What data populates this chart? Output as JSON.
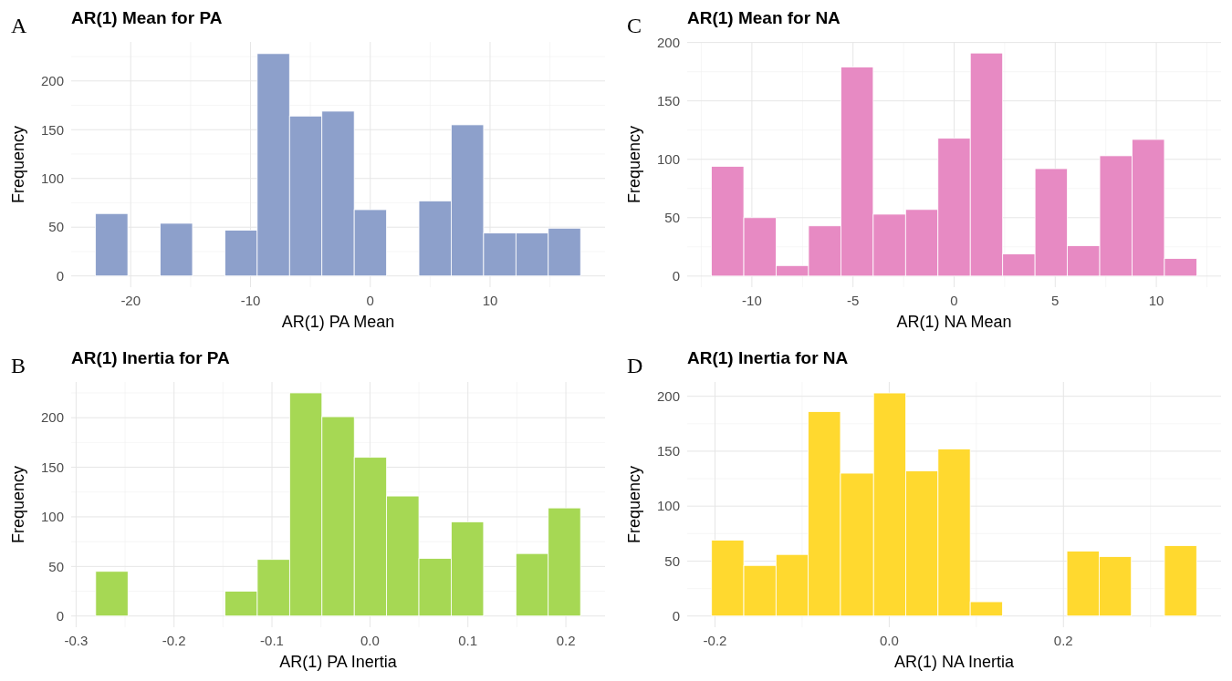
{
  "chart_data": [
    {
      "type": "histogram",
      "title": "AR(1) Mean for PA",
      "xlabel": "AR(1) PA Mean",
      "ylabel": "Frequency",
      "annotations": [
        "A"
      ],
      "color": "#8da0cb",
      "bins": [
        -22.94,
        -20.24,
        -17.54,
        -14.84,
        -12.14,
        -9.44,
        -6.74,
        -4.04,
        -1.34,
        1.36,
        4.06,
        6.76,
        9.46,
        12.16,
        14.86,
        17.56
      ],
      "values": [
        64,
        0,
        54,
        0,
        47,
        228,
        164,
        169,
        68,
        0,
        77,
        155,
        44,
        44,
        49
      ],
      "xlim": [
        -24.97,
        19.6
      ],
      "xticks": [
        -20,
        -10,
        0,
        10
      ],
      "ylim": [
        -11.5,
        240
      ],
      "yticks": [
        0,
        50,
        100,
        150,
        200
      ],
      "grid": true
    },
    {
      "type": "histogram",
      "title": "AR(1) Mean for NA",
      "xlabel": "AR(1) NA Mean",
      "ylabel": "Frequency",
      "annotations": [
        "C"
      ],
      "color": "#e78ac3",
      "bins": [
        -12,
        -10.4,
        -8.8,
        -7.2,
        -5.6,
        -4,
        -2.4,
        -0.8,
        0.8,
        2.4,
        4,
        5.6,
        7.2,
        8.8,
        10.4,
        12
      ],
      "values": [
        94,
        50,
        9,
        43,
        179,
        53,
        57,
        118,
        191,
        19,
        92,
        26,
        103,
        117,
        15
      ],
      "xlim": [
        -13.2,
        13.2
      ],
      "xticks": [
        -10,
        -5,
        0,
        5,
        10
      ],
      "ylim": [
        -9.5,
        200.5
      ],
      "yticks": [
        0,
        50,
        100,
        150,
        200
      ],
      "grid": true
    },
    {
      "type": "histogram",
      "title": "AR(1) Inertia for PA",
      "xlabel": "AR(1) PA Inertia",
      "ylabel": "Frequency",
      "annotations": [
        "B"
      ],
      "color": "#a6d854",
      "bins": [
        -0.28,
        -0.247,
        -0.148,
        -0.115,
        -0.082,
        -0.049,
        -0.016,
        0.017,
        0.05,
        0.083,
        0.116,
        0.149,
        0.182,
        0.215
      ],
      "values": [
        45,
        0,
        25,
        57,
        225,
        201,
        160,
        121,
        58,
        95,
        0,
        63,
        109
      ],
      "xlim": [
        -0.305,
        0.24
      ],
      "xticks": [
        -0.3,
        -0.2,
        -0.1,
        {
          "value": 0,
          "label": "0.0"
        },
        0.1,
        0.2
      ],
      "ylim": [
        -11.3,
        236
      ],
      "yticks": [
        0,
        50,
        100,
        150,
        200
      ],
      "grid": true
    },
    {
      "type": "histogram",
      "title": "AR(1) Inertia for NA",
      "xlabel": "AR(1) NA Inertia",
      "ylabel": "Frequency",
      "annotations": [
        "D"
      ],
      "color": "#ffd92f",
      "bins": [
        -0.204,
        -0.167,
        -0.13,
        -0.093,
        -0.056,
        -0.018,
        0.019,
        0.056,
        0.093,
        0.13,
        0.204,
        0.241,
        0.278,
        0.316,
        0.353
      ],
      "values": [
        69,
        46,
        56,
        186,
        130,
        203,
        132,
        152,
        13,
        0,
        59,
        54,
        0,
        64
      ],
      "xlim": [
        -0.232,
        0.381
      ],
      "xticks": [
        -0.2,
        {
          "value": 0,
          "label": "0.0"
        },
        0.2
      ],
      "ylim": [
        -10.2,
        213
      ],
      "yticks": [
        0,
        50,
        100,
        150,
        200
      ],
      "grid": true
    }
  ]
}
